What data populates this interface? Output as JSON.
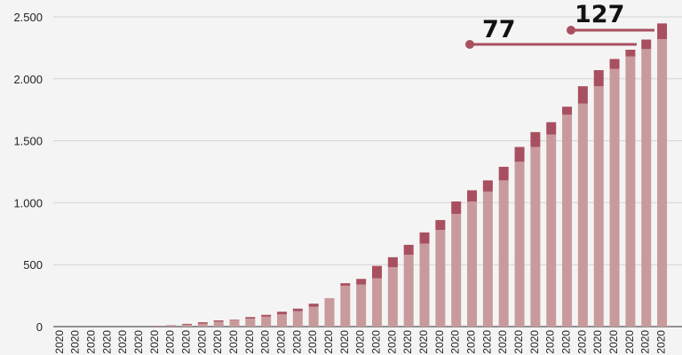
{
  "chart_data": {
    "type": "bar",
    "stacked": true,
    "ylim": [
      0,
      2500
    ],
    "yticks": [
      {
        "value": 0,
        "label": "0"
      },
      {
        "value": 500,
        "label": "500"
      },
      {
        "value": 1000,
        "label": "1.000"
      },
      {
        "value": 1500,
        "label": "1.500"
      },
      {
        "value": 2000,
        "label": "2.000"
      },
      {
        "value": 2500,
        "label": "2.500"
      }
    ],
    "x_tick_label": "2020",
    "grid": true,
    "colors": {
      "base": "#c99a9c",
      "new": "#a8505f",
      "grid": "#d4d4d4",
      "axis": "#555555",
      "callout_line": "#a8505f"
    },
    "series": [
      {
        "values": [
          0,
          0,
          0,
          0,
          0,
          0,
          2,
          5,
          15,
          25,
          40,
          50,
          65,
          80,
          100,
          125,
          160,
          230,
          330,
          340,
          390,
          480,
          580,
          670,
          780,
          910,
          1010,
          1090,
          1180,
          1330,
          1450,
          1550,
          1710,
          1800,
          1940,
          2080,
          2180,
          2240,
          2320
        ]
      },
      {
        "values": [
          0,
          0,
          0,
          0,
          0,
          0,
          3,
          5,
          7,
          10,
          10,
          5,
          12,
          15,
          20,
          20,
          25,
          0,
          20,
          45,
          100,
          80,
          80,
          90,
          80,
          100,
          90,
          90,
          110,
          120,
          120,
          100,
          65,
          140,
          130,
          80,
          55,
          77,
          127
        ]
      }
    ],
    "annotations": [
      {
        "text": "77",
        "bar_index": 37
      },
      {
        "text": "127",
        "bar_index": 38
      }
    ]
  }
}
